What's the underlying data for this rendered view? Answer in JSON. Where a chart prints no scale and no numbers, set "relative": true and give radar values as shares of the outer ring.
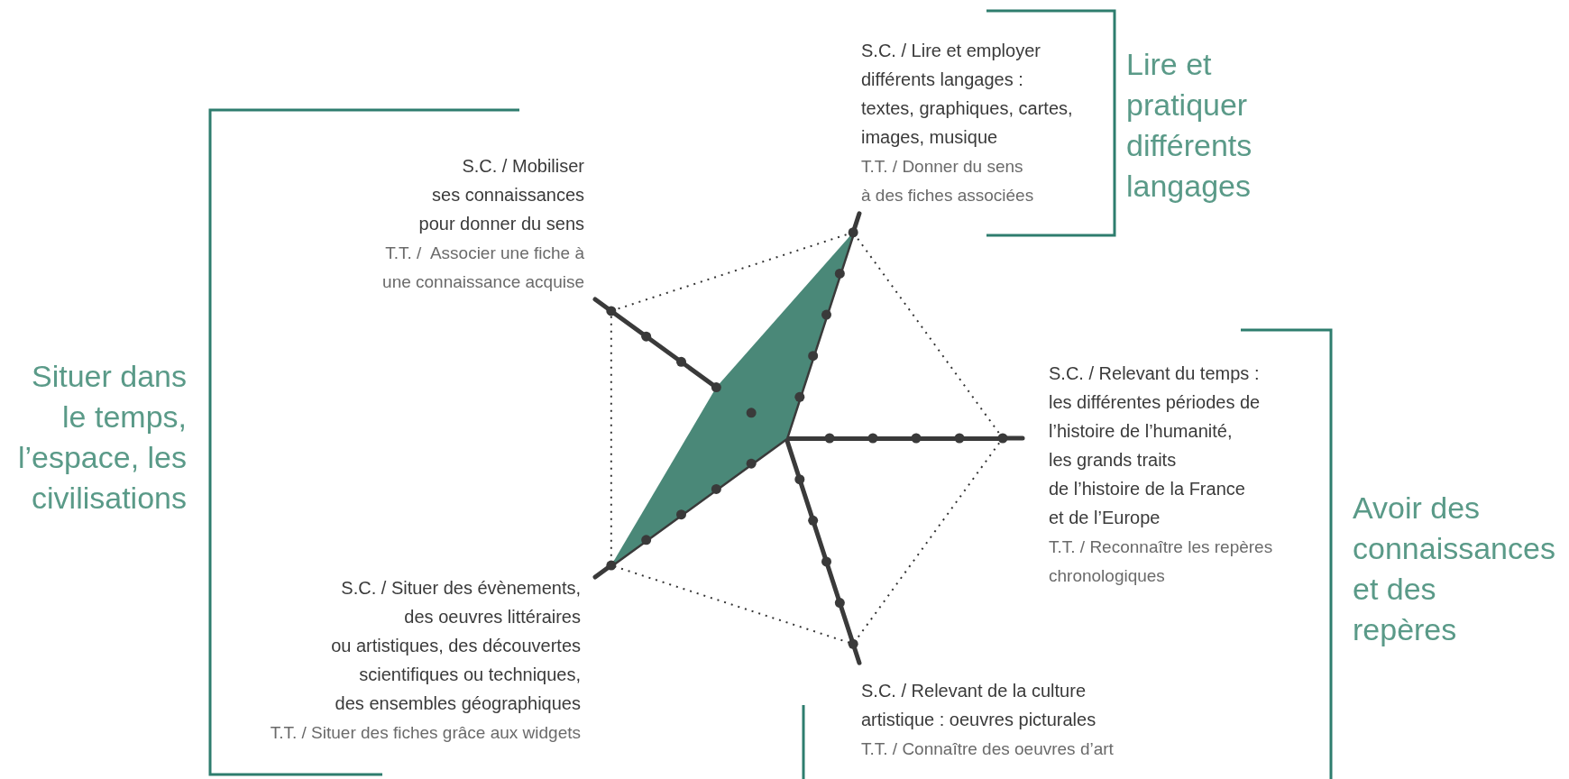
{
  "chart_data": {
    "type": "radar",
    "relative": true,
    "categories": [
      "S.C. / Lire et employer\ndifférents langages :\ntextes, graphiques, cartes,\nimages, musique",
      "S.C. / Relevant du temps :\nles différentes périodes de\nl’histoire de l’humanité,\nles grands traits\nde l’histoire de la France\net de l’Europe",
      "S.C. / Relevant de la culture\nartistique : oeuvres picturales",
      "S.C. / Situer des évènements,\ndes oeuvres littéraires\nou artistiques, des découvertes\nscientifiques ou techniques,\ndes ensembles géographiques",
      "S.C. / Mobiliser\nses connaissances\npour donner du sens"
    ],
    "series": [
      {
        "color": "#4a8878",
        "values": [
          1,
          0,
          0,
          1,
          0.4
        ]
      }
    ],
    "annotations": [
      "T.T. / Donner du sens\nà des fiches associées",
      "T.T. / Reconnaître les repères\nchronologiques",
      "T.T. / Connaître des oeuvres d’art",
      "T.T. / Situer des fiches grâce aux widgets",
      "T.T. /  Associer une fiche à\nune connaissance acquise",
      "Lire et\npratiquer\ndifférents\nlangages",
      "Avoir des\nconnaissances\net des\nrepères",
      "Situer dans\nle temps,\nl’espace, les\ncivilisations"
    ],
    "grid": true,
    "marker": "none"
  }
}
